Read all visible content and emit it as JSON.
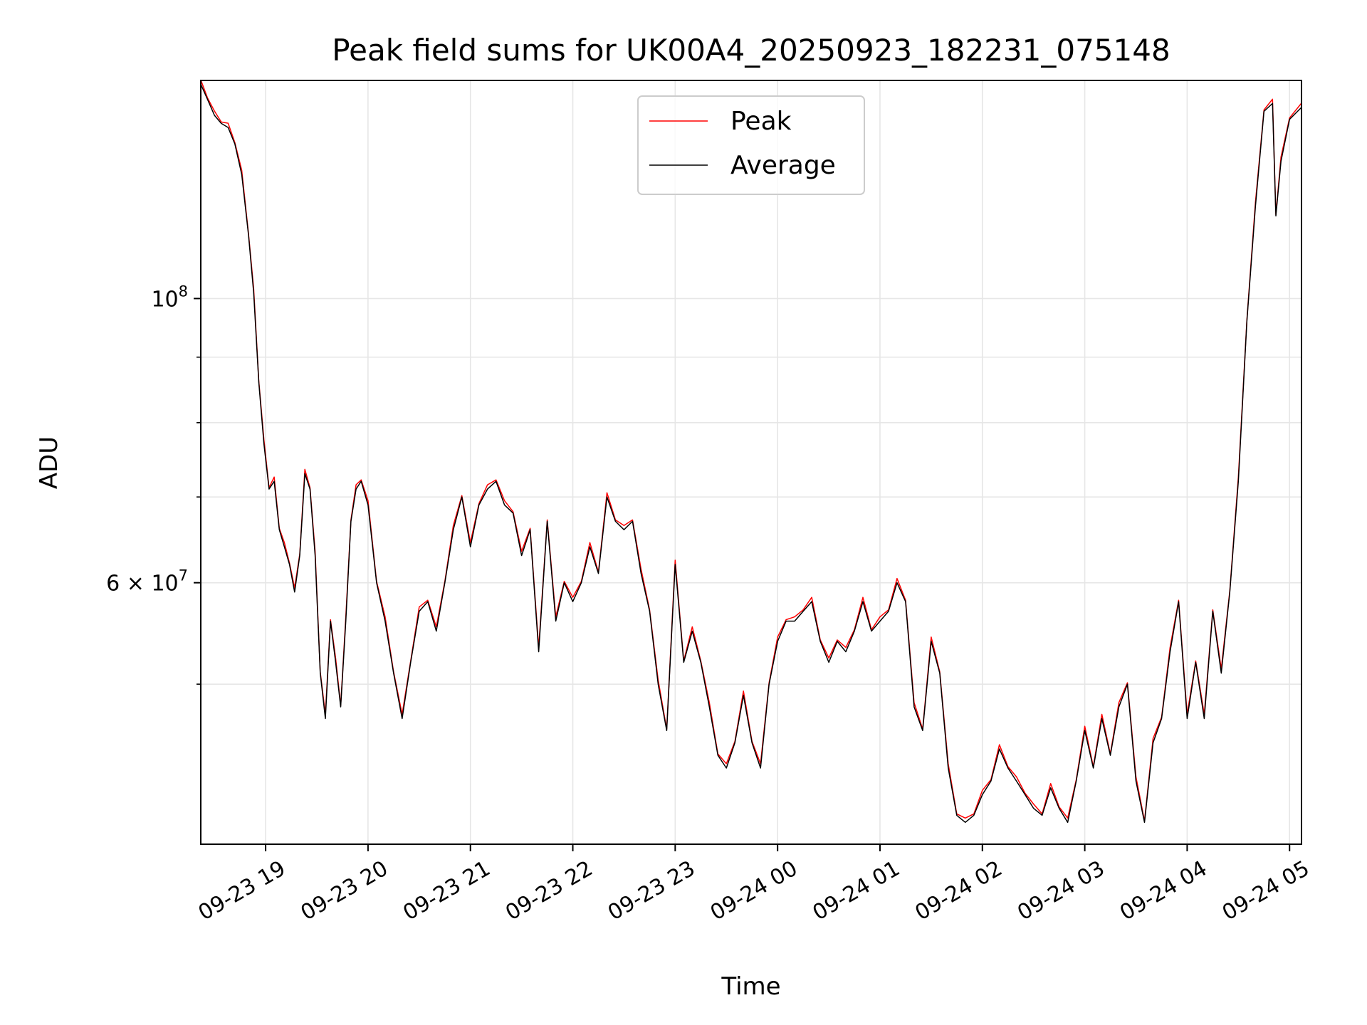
{
  "chart_data": {
    "type": "line",
    "title": "Peak field sums for UK00A4_20250923_182231_075148",
    "xlabel": "Time",
    "ylabel": "ADU",
    "yscale": "log",
    "ylim": [
      37500000,
      148000000
    ],
    "xlim": [
      "2025-09-23 18:22",
      "2025-09-24 05:07"
    ],
    "grid": true,
    "legend": {
      "placement": "upper center"
    },
    "x_ticks": [
      "09-23 19",
      "09-23 20",
      "09-23 21",
      "09-23 22",
      "09-23 23",
      "09-24 00",
      "09-24 01",
      "09-24 02",
      "09-24 03",
      "09-24 04",
      "09-24 05"
    ],
    "y_tick_labels": [
      {
        "value": 100000000,
        "mantissa": "",
        "base": "10",
        "exp": "8"
      },
      {
        "value": 60000000,
        "mantissa": "6 × ",
        "base": "10",
        "exp": "7"
      }
    ],
    "y_minor_ticks": [
      50000000,
      70000000,
      80000000,
      90000000
    ],
    "series": [
      {
        "name": "Peak",
        "color": "#ff0000",
        "line_width": 1.5
      },
      {
        "name": "Average",
        "color": "#000000",
        "line_width": 1.5
      }
    ],
    "x": [
      "2025-09-23 18:22",
      "2025-09-23 18:26",
      "2025-09-23 18:30",
      "2025-09-23 18:34",
      "2025-09-23 18:38",
      "2025-09-23 18:42",
      "2025-09-23 18:46",
      "2025-09-23 18:50",
      "2025-09-23 18:53",
      "2025-09-23 18:56",
      "2025-09-23 18:59",
      "2025-09-23 19:02",
      "2025-09-23 19:05",
      "2025-09-23 19:08",
      "2025-09-23 19:11",
      "2025-09-23 19:14",
      "2025-09-23 19:17",
      "2025-09-23 19:20",
      "2025-09-23 19:23",
      "2025-09-23 19:26",
      "2025-09-23 19:29",
      "2025-09-23 19:32",
      "2025-09-23 19:35",
      "2025-09-23 19:38",
      "2025-09-23 19:41",
      "2025-09-23 19:44",
      "2025-09-23 19:47",
      "2025-09-23 19:50",
      "2025-09-23 19:53",
      "2025-09-23 19:56",
      "2025-09-23 20:00",
      "2025-09-23 20:05",
      "2025-09-23 20:10",
      "2025-09-23 20:15",
      "2025-09-23 20:20",
      "2025-09-23 20:25",
      "2025-09-23 20:30",
      "2025-09-23 20:35",
      "2025-09-23 20:40",
      "2025-09-23 20:45",
      "2025-09-23 20:50",
      "2025-09-23 20:55",
      "2025-09-23 21:00",
      "2025-09-23 21:05",
      "2025-09-23 21:10",
      "2025-09-23 21:15",
      "2025-09-23 21:20",
      "2025-09-23 21:25",
      "2025-09-23 21:30",
      "2025-09-23 21:35",
      "2025-09-23 21:40",
      "2025-09-23 21:45",
      "2025-09-23 21:50",
      "2025-09-23 21:55",
      "2025-09-23 22:00",
      "2025-09-23 22:05",
      "2025-09-23 22:10",
      "2025-09-23 22:15",
      "2025-09-23 22:20",
      "2025-09-23 22:25",
      "2025-09-23 22:30",
      "2025-09-23 22:35",
      "2025-09-23 22:40",
      "2025-09-23 22:45",
      "2025-09-23 22:50",
      "2025-09-23 22:55",
      "2025-09-23 23:00",
      "2025-09-23 23:05",
      "2025-09-23 23:10",
      "2025-09-23 23:15",
      "2025-09-23 23:20",
      "2025-09-23 23:25",
      "2025-09-23 23:30",
      "2025-09-23 23:35",
      "2025-09-23 23:40",
      "2025-09-23 23:45",
      "2025-09-23 23:50",
      "2025-09-23 23:55",
      "2025-09-24 00:00",
      "2025-09-24 00:05",
      "2025-09-24 00:10",
      "2025-09-24 00:15",
      "2025-09-24 00:20",
      "2025-09-24 00:25",
      "2025-09-24 00:30",
      "2025-09-24 00:35",
      "2025-09-24 00:40",
      "2025-09-24 00:45",
      "2025-09-24 00:50",
      "2025-09-24 00:55",
      "2025-09-24 01:00",
      "2025-09-24 01:05",
      "2025-09-24 01:10",
      "2025-09-24 01:15",
      "2025-09-24 01:20",
      "2025-09-24 01:25",
      "2025-09-24 01:30",
      "2025-09-24 01:35",
      "2025-09-24 01:40",
      "2025-09-24 01:45",
      "2025-09-24 01:50",
      "2025-09-24 01:55",
      "2025-09-24 02:00",
      "2025-09-24 02:05",
      "2025-09-24 02:10",
      "2025-09-24 02:15",
      "2025-09-24 02:20",
      "2025-09-24 02:25",
      "2025-09-24 02:30",
      "2025-09-24 02:35",
      "2025-09-24 02:40",
      "2025-09-24 02:45",
      "2025-09-24 02:50",
      "2025-09-24 02:55",
      "2025-09-24 03:00",
      "2025-09-24 03:05",
      "2025-09-24 03:10",
      "2025-09-24 03:15",
      "2025-09-24 03:20",
      "2025-09-24 03:25",
      "2025-09-24 03:30",
      "2025-09-24 03:35",
      "2025-09-24 03:40",
      "2025-09-24 03:45",
      "2025-09-24 03:50",
      "2025-09-24 03:55",
      "2025-09-24 04:00",
      "2025-09-24 04:05",
      "2025-09-24 04:10",
      "2025-09-24 04:15",
      "2025-09-24 04:20",
      "2025-09-24 04:25",
      "2025-09-24 04:30",
      "2025-09-24 04:35",
      "2025-09-24 04:40",
      "2025-09-24 04:45",
      "2025-09-24 04:50",
      "2025-09-24 04:52",
      "2025-09-24 04:55",
      "2025-09-24 05:00",
      "2025-09-24 05:07"
    ],
    "values": [
      147000000,
      143000000,
      139000000,
      137000000,
      136000000,
      132000000,
      125000000,
      112000000,
      101000000,
      86000000,
      77000000,
      71000000,
      72000000,
      66000000,
      64000000,
      62000000,
      59000000,
      63000000,
      73000000,
      71000000,
      63000000,
      51000000,
      47000000,
      56000000,
      52000000,
      48000000,
      56000000,
      67000000,
      71000000,
      72000000,
      69000000,
      60000000,
      56000000,
      51000000,
      47000000,
      52000000,
      57000000,
      58000000,
      55000000,
      60000000,
      66000000,
      70000000,
      64000000,
      69000000,
      71000000,
      72000000,
      69000000,
      68000000,
      63000000,
      66000000,
      53000000,
      67000000,
      56000000,
      60000000,
      58000000,
      60000000,
      64000000,
      61000000,
      70000000,
      67000000,
      66000000,
      67000000,
      61000000,
      57000000,
      50000000,
      46000000,
      62000000,
      52000000,
      55000000,
      52000000,
      48000000,
      44000000,
      43000000,
      45000000,
      49000000,
      45000000,
      43000000,
      50000000,
      54000000,
      56000000,
      56000000,
      57000000,
      58000000,
      54000000,
      52000000,
      54000000,
      53000000,
      55000000,
      58000000,
      55000000,
      56000000,
      57000000,
      60000000,
      58000000,
      48000000,
      46000000,
      54000000,
      51000000,
      43000000,
      39500000,
      39000000,
      39500000,
      41000000,
      42000000,
      44500000,
      43000000,
      42000000,
      41000000,
      40000000,
      39500000,
      41500000,
      40000000,
      39000000,
      42000000,
      46000000,
      43000000,
      47000000,
      44000000,
      48000000,
      50000000,
      42000000,
      39000000,
      45000000,
      47000000,
      53000000,
      58000000,
      47000000,
      52000000,
      47000000,
      57000000,
      51000000,
      59000000,
      72000000,
      96000000,
      118000000,
      140000000,
      142000000,
      116000000,
      128000000,
      138000000,
      141000000
    ]
  }
}
